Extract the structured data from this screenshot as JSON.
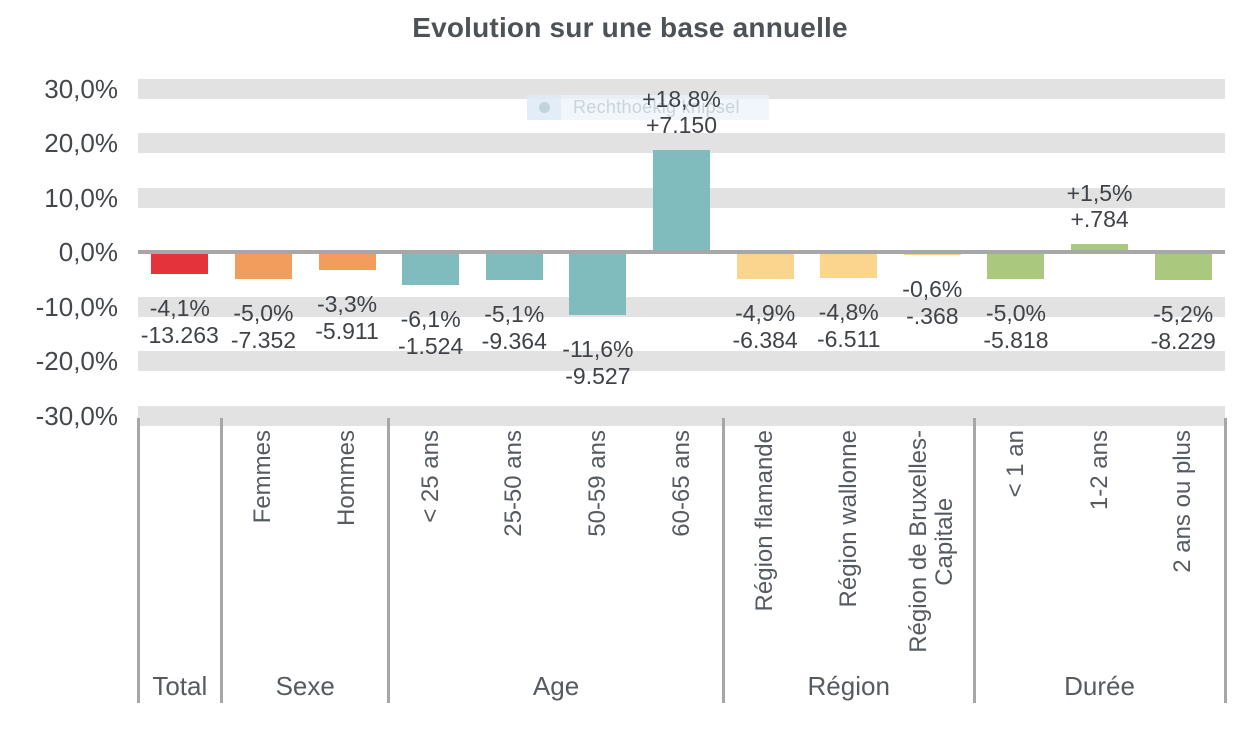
{
  "title": "Evolution sur une base annuelle",
  "overlay": {
    "label": "Rechthoekig knipsel"
  },
  "colors": {
    "total": "#e5333b",
    "sexe": "#f29c5e",
    "age": "#80bcbd",
    "region": "#fbd48e",
    "duree": "#aac97e",
    "grid_band": "#e2e2e2",
    "axis_line": "#a7a7a7"
  },
  "chart_data": {
    "type": "bar",
    "title": "Evolution sur une base annuelle",
    "xlabel": "",
    "ylabel": "",
    "unit": "%",
    "ylim": [
      -30,
      30
    ],
    "ytick_step": 10,
    "grid": "horizontal-bands",
    "legend": "none",
    "yticks": [
      {
        "value": 30,
        "label": "30,0%"
      },
      {
        "value": 20,
        "label": "20,0%"
      },
      {
        "value": 10,
        "label": "10,0%"
      },
      {
        "value": 0,
        "label": "0,0%"
      },
      {
        "value": -10,
        "label": "-10,0%"
      },
      {
        "value": -20,
        "label": "-20,0%"
      },
      {
        "value": -30,
        "label": "-30,0%"
      }
    ],
    "groups": [
      {
        "label": "Total",
        "color": "#e5333b",
        "bars": [
          {
            "category": "",
            "pct": -4.1,
            "pct_label": "-4,1%",
            "value_label": "-13.263"
          }
        ]
      },
      {
        "label": "Sexe",
        "color": "#f29c5e",
        "bars": [
          {
            "category": "Femmes",
            "pct": -5.0,
            "pct_label": "-5,0%",
            "value_label": "-7.352"
          },
          {
            "category": "Hommes",
            "pct": -3.3,
            "pct_label": "-3,3%",
            "value_label": "-5.911"
          }
        ]
      },
      {
        "label": "Age",
        "color": "#80bcbd",
        "bars": [
          {
            "category": "< 25 ans",
            "pct": -6.1,
            "pct_label": "-6,1%",
            "value_label": "-1.524"
          },
          {
            "category": "25-50 ans",
            "pct": -5.1,
            "pct_label": "-5,1%",
            "value_label": "-9.364"
          },
          {
            "category": "50-59 ans",
            "pct": -11.6,
            "pct_label": "-11,6%",
            "value_label": "-9.527"
          },
          {
            "category": "60-65 ans",
            "pct": 18.8,
            "pct_label": "+18,8%",
            "value_label": "+7.150"
          }
        ]
      },
      {
        "label": "Région",
        "color": "#fbd48e",
        "bars": [
          {
            "category": "Région flamande",
            "pct": -4.9,
            "pct_label": "-4,9%",
            "value_label": "-6.384"
          },
          {
            "category": "Région wallonne",
            "pct": -4.8,
            "pct_label": "-4,8%",
            "value_label": "-6.511"
          },
          {
            "category": "Région de Bruxelles-\nCapitale",
            "pct": -0.6,
            "pct_label": "-0,6%",
            "value_label": "-.368"
          }
        ]
      },
      {
        "label": "Durée",
        "color": "#aac97e",
        "bars": [
          {
            "category": "< 1 an",
            "pct": -5.0,
            "pct_label": "-5,0%",
            "value_label": "-5.818"
          },
          {
            "category": "1-2 ans",
            "pct": 1.5,
            "pct_label": "+1,5%",
            "value_label": "+.784"
          },
          {
            "category": "2 ans ou plus",
            "pct": -5.2,
            "pct_label": "-5,2%",
            "value_label": "-8.229"
          }
        ]
      }
    ]
  }
}
